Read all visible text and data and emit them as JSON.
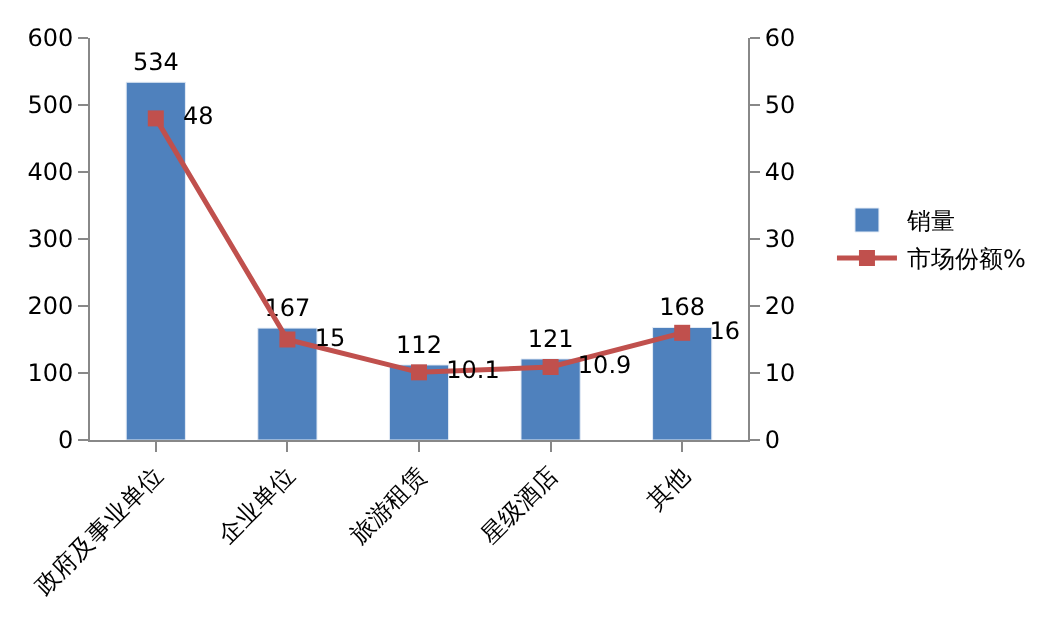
{
  "chart_data": {
    "type": "bar",
    "categories": [
      "政府及事业单位",
      "企业单位",
      "旅游租赁",
      "星级酒店",
      "其他"
    ],
    "series": [
      {
        "name": "销量",
        "color": "#4f81bd",
        "values": [
          534,
          167,
          112,
          121,
          168
        ]
      },
      {
        "name": "市场份额%",
        "type": "line",
        "axis": "y2",
        "color": "#c0504d",
        "marker": "square",
        "values": [
          48,
          15,
          10.1,
          10.9,
          16
        ]
      }
    ],
    "ylim": [
      0,
      600
    ],
    "yticks": [
      0,
      100,
      200,
      300,
      400,
      500,
      600
    ],
    "y2lim": [
      0,
      60
    ],
    "y2ticks": [
      0,
      10,
      20,
      30,
      40,
      50,
      60
    ],
    "data_labels": true,
    "legend": "right"
  }
}
